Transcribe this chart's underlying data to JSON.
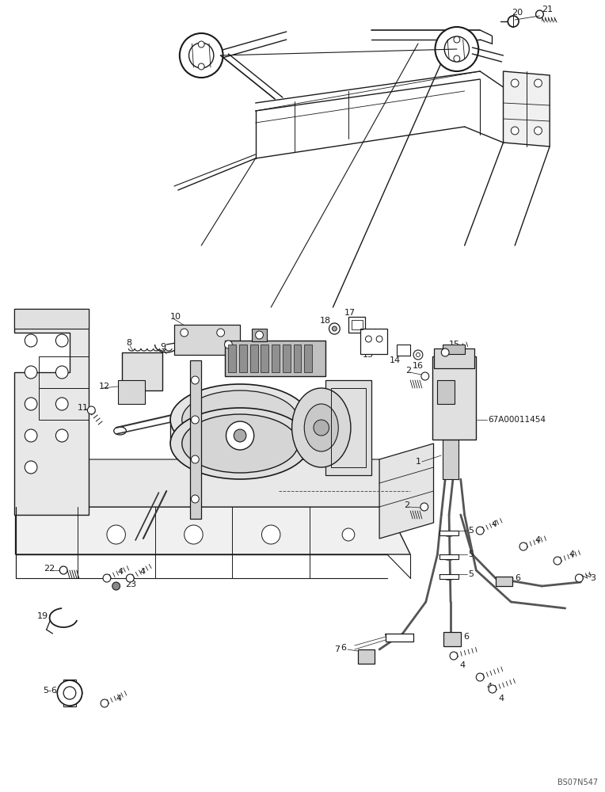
{
  "bg_color": "#ffffff",
  "fig_width": 7.64,
  "fig_height": 10.0,
  "dpi": 100,
  "watermark": "BS07N547",
  "part_ref": "67A00011454",
  "lc": "#1a1a1a",
  "lw": 0.7
}
